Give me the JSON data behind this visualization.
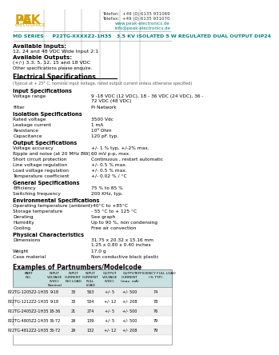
{
  "telefon": "Telefon:  +49 (0) 6135 931069",
  "telefax": "Telefax:  +49 (0) 6135 931070",
  "website": "www.peak-electronics.de",
  "email": "info@peak-electronics.de",
  "series_line": "MD SERIES     P22TG-XXXXZ2-1H35   3.5 KV ISOLATED 5 W REGULATED DUAL OUTPUT DIP24",
  "available_inputs_label": "Available Inputs:",
  "available_inputs": "12, 24 and 48 VDC Wide Input 2:1",
  "available_outputs_label": "Available Outputs:",
  "available_outputs": "(+/-) 3.3, 5, 12, 15 and 18 VDC",
  "other_specs": "Other specifications please enquire.",
  "elec_spec_title": "Electrical Specifications",
  "elec_spec_sub": "(Typical at + 25° C, nominal input voltage, rated output current unless otherwise specified)",
  "input_spec_title": "Input Specifications",
  "voltage_range_label": "Voltage range",
  "voltage_range_val": "9 -18 VDC (12 VDC), 18 - 36 VDC (24 VDC), 36 -\n72 VDC (48 VDC)",
  "filter_label": "Filter",
  "filter_val": "Pi Network",
  "isolation_spec_title": "Isolation Specifications",
  "rated_voltage_label": "Rated voltage",
  "rated_voltage_val": "3500 Vdc",
  "leakage_label": "Leakage current",
  "leakage_val": "1 mA",
  "resistance_label": "Resistance",
  "resistance_val": "10⁹ Ohm",
  "capacitance_label": "Capacitance",
  "capacitance_val": "120 pF. typ.",
  "output_spec_title": "Output Specifications",
  "voltage_accuracy_label": "Voltage accuracy",
  "voltage_accuracy_val": "+/- 1 % typ, +/-2% max.",
  "ripple_label": "Ripple and noise (at 20 MHz BW)",
  "ripple_val": "60 mV p-p, max.",
  "short_circuit_label": "Short circuit protection",
  "short_circuit_val": "Continuous , restart automatic",
  "line_voltage_label": "Line voltage regulation",
  "line_voltage_val": "+/- 0.5 % max.",
  "load_voltage_label": "Load voltage regulation",
  "load_voltage_val": "+/- 0.5 % max.",
  "temp_coeff_label": "Temperature coefficient",
  "temp_coeff_val": "+/- 0.02 % / °C",
  "general_spec_title": "General Specifications",
  "efficiency_label": "Efficiency",
  "efficiency_val": "75 % to 85 %",
  "switching_freq_label": "Switching frequency",
  "switching_freq_val": "200 KHz, typ.",
  "env_spec_title": "Environmental Specifications",
  "op_temp_label": "Operating temperature (ambient)",
  "op_temp_val": "-40°C to +85°C",
  "storage_temp_label": "Storage temperature",
  "storage_temp_val": "- 55 °C to + 125 °C",
  "derating_label": "Derating",
  "derating_val": "See graph",
  "humidity_label": "Humidity",
  "humidity_val": "Up to 90 %, non condensing",
  "cooling_label": "Cooling",
  "cooling_val": "Free air convection",
  "phys_char_title": "Physical Characteristics",
  "dimensions_label": "Dimensions",
  "dimensions_val": "31.75 x 20.32 x 15.16 mm\n1.25 x 0.80 x 0.40 inches",
  "weight_label": "Weight",
  "weight_val": "17.0 g",
  "case_label": "Case material",
  "case_val": "Non conductive black plastic",
  "examples_title": "Examples of Partnumbers/Modelcode",
  "table_headers": [
    "PART\nNO.",
    "INPUT\nVOLTAGE\n(VDC)\nNominal",
    "INPUT\nCURRENT\nNO LOAD",
    "INPUT\nCURRENT\nFULL\nLOAD",
    "OUTPUT\nVOLTAGE\n(VDC)",
    "OUTPUT\nCURRENT\n(max. mA)",
    "EFFICIENCY FULL LOAD\n(% TYP.)"
  ],
  "table_rows": [
    [
      "P22TG-1205Z2-1H35",
      "9-18",
      "33",
      "563",
      "+/- 5",
      "+/- 500",
      "74"
    ],
    [
      "P22TG-1212Z2-1H35",
      "9-18",
      "33",
      "534",
      "+/- 12",
      "+/- 208",
      "78"
    ],
    [
      "P22TG-2405Z2-1H35",
      "18-36",
      "21",
      "274",
      "+/- 5",
      "+/- 500",
      "76"
    ],
    [
      "P22TG-4805Z2-1H35",
      "36-72",
      "29",
      "139",
      "+/- 5",
      "+/- 500",
      "79"
    ],
    [
      "P22TG-4812Z2-1H35",
      "36-72",
      "29",
      "132",
      "+/- 12",
      "+/- 208",
      "79"
    ]
  ],
  "logo_peak_color": "#D4A000",
  "teal_color": "#008080",
  "header_bg": "#c8e0e0",
  "bg_color": "#ffffff"
}
